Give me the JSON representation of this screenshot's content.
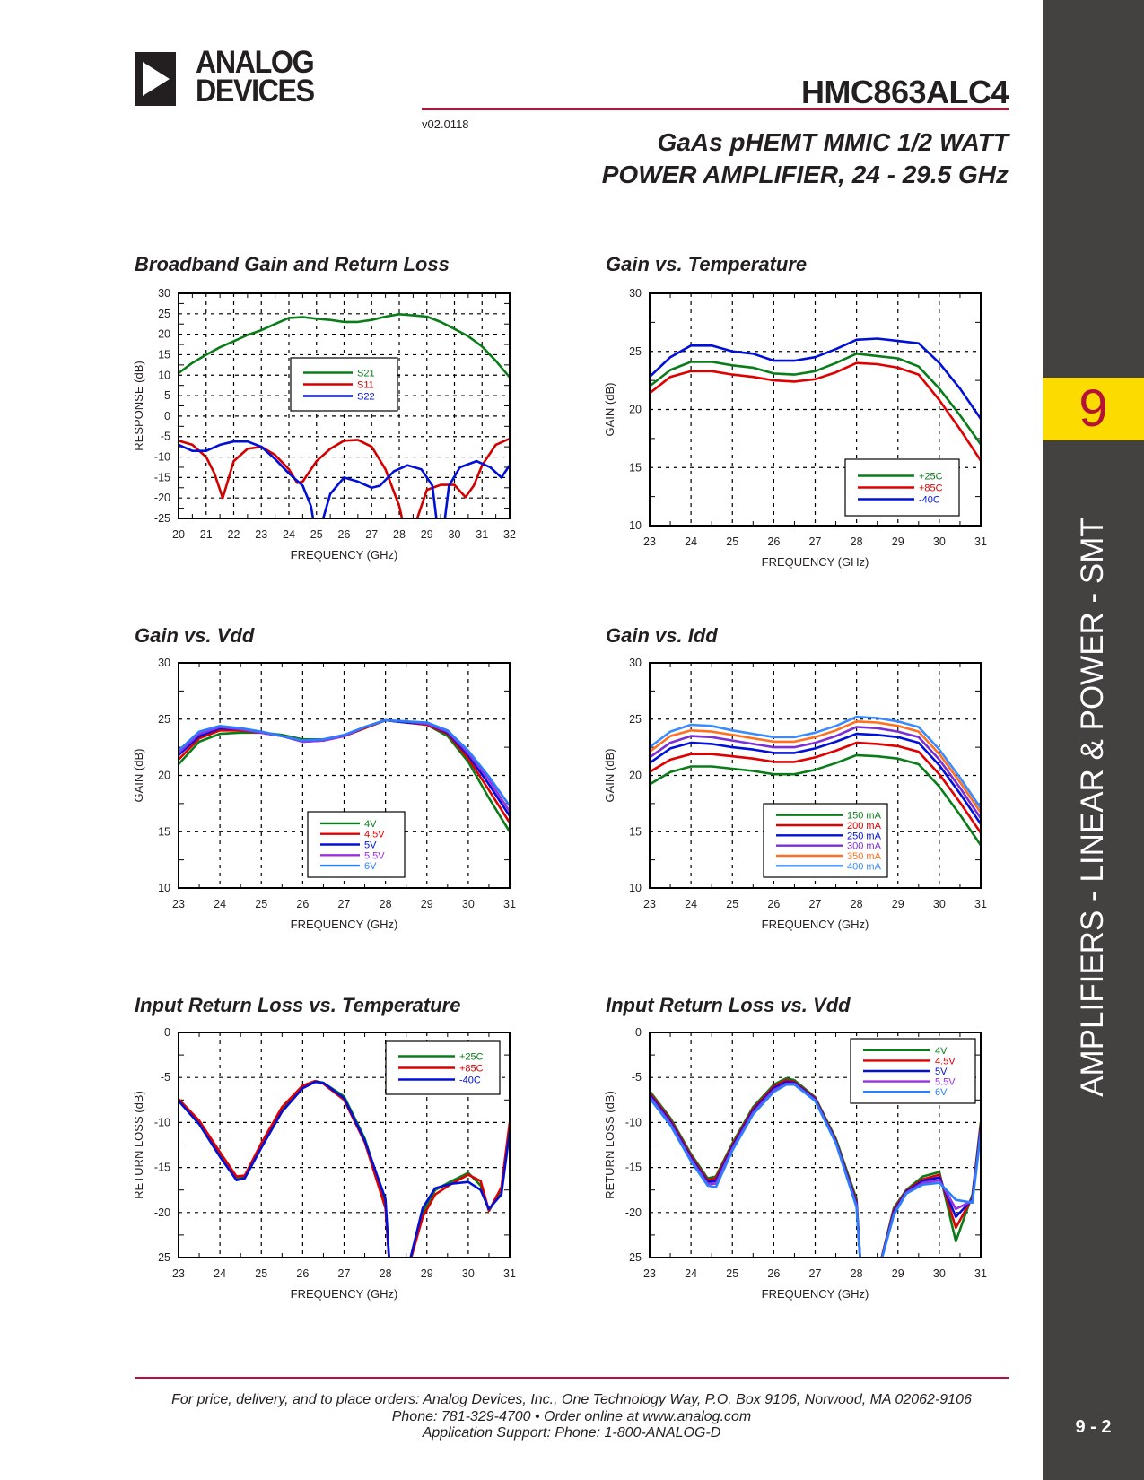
{
  "header": {
    "logo_line1": "ANALOG",
    "logo_line2": "DEVICES",
    "part_number": "HMC863ALC4",
    "version": "v02.0118",
    "subtitle_line1": "GaAs pHEMT MMIC 1/2 WATT",
    "subtitle_line2": "POWER AMPLIFIER, 24 - 29.5 GHz"
  },
  "sidebar": {
    "tab_number": "9",
    "section": "AMPLIFIERS - LINEAR & POWER - SMT",
    "page_number": "9 - 2"
  },
  "footer": {
    "line1": "For price, delivery, and to place orders: Analog Devices, Inc., One Technology Way, P.O. Box 9106, Norwood, MA 02062-9106",
    "line2": "Phone: 781-329-4700 • Order online at www.analog.com",
    "line3": "Application Support: Phone: 1-800-ANALOG-D"
  },
  "chart_data": [
    {
      "type": "line",
      "title": "Broadband Gain and Return Loss",
      "xlabel": "FREQUENCY (GHz)",
      "ylabel": "RESPONSE (dB)",
      "xlim": [
        20,
        32
      ],
      "ylim": [
        -25,
        30
      ],
      "xticks": [
        20,
        21,
        22,
        23,
        24,
        25,
        26,
        27,
        28,
        29,
        30,
        31,
        32
      ],
      "yticks": [
        30,
        25,
        20,
        15,
        10,
        5,
        0,
        -5,
        -10,
        -15,
        -20,
        -25
      ],
      "grid": true,
      "legend": "center",
      "series": [
        {
          "name": "S21",
          "color": "#0a7d1a",
          "x": [
            20,
            20.5,
            21,
            21.5,
            22,
            22.5,
            23,
            23.5,
            24,
            24.5,
            25,
            25.5,
            26,
            26.5,
            27,
            27.5,
            28,
            28.5,
            29,
            29.5,
            30,
            30.5,
            31,
            31.5,
            32
          ],
          "y": [
            10.5,
            13,
            15,
            16.8,
            18.3,
            19.8,
            21,
            22.5,
            24,
            24.2,
            23.8,
            23.5,
            23,
            23,
            23.5,
            24.3,
            24.9,
            24.6,
            24.3,
            23,
            21.3,
            19.5,
            17,
            13.5,
            9.5
          ]
        },
        {
          "name": "S11",
          "color": "#d40000",
          "x": [
            20,
            20.5,
            21,
            21.3,
            21.6,
            22,
            22.5,
            23,
            23.5,
            24,
            24.3,
            24.5,
            25,
            25.5,
            26,
            26.5,
            27,
            27.5,
            28,
            28.2,
            28.5,
            28.8,
            29,
            29.5,
            30,
            30.4,
            30.7,
            31,
            31.5,
            32
          ],
          "y": [
            -6,
            -7,
            -10,
            -14,
            -20,
            -11,
            -8,
            -7.5,
            -9.5,
            -13,
            -16.3,
            -16,
            -11,
            -8,
            -6,
            -5.8,
            -7.5,
            -13,
            -22,
            -28,
            -28,
            -22,
            -18,
            -16.8,
            -16.8,
            -19.8,
            -17,
            -12,
            -7,
            -5.5
          ]
        },
        {
          "name": "S22",
          "color": "#0010d8",
          "x": [
            20,
            20.5,
            21,
            21.5,
            22,
            22.5,
            23,
            23.5,
            24,
            24.5,
            24.8,
            25,
            25.2,
            25.5,
            26,
            26.5,
            27,
            27.3,
            27.8,
            28.3,
            28.8,
            29.2,
            29.4,
            29.6,
            29.8,
            30.2,
            30.8,
            31.3,
            31.7,
            32
          ],
          "y": [
            -7,
            -8.5,
            -8.5,
            -7,
            -6.2,
            -6.2,
            -7.5,
            -10.5,
            -14,
            -17,
            -22,
            -30,
            -26,
            -19,
            -15,
            -16,
            -17.5,
            -17,
            -13.5,
            -12,
            -13,
            -17,
            -28,
            -28,
            -17,
            -12.5,
            -11,
            -12.5,
            -15,
            -12
          ]
        }
      ]
    },
    {
      "type": "line",
      "title": "Gain vs. Temperature",
      "xlabel": "FREQUENCY (GHz)",
      "ylabel": "GAIN (dB)",
      "xlim": [
        23,
        31
      ],
      "ylim": [
        10,
        30
      ],
      "xticks": [
        23,
        24,
        25,
        26,
        27,
        28,
        29,
        30,
        31
      ],
      "yticks": [
        30,
        25,
        20,
        15,
        10
      ],
      "grid": true,
      "legend": "bottom-right",
      "x": [
        23,
        23.5,
        24,
        24.5,
        25,
        25.5,
        26,
        26.5,
        27,
        27.5,
        28,
        28.5,
        29,
        29.5,
        30,
        30.5,
        31
      ],
      "series": [
        {
          "name": "+25C",
          "color": "#0a7d1a",
          "y": [
            22,
            23.4,
            24.1,
            24.1,
            23.8,
            23.6,
            23.1,
            23.0,
            23.3,
            24.0,
            24.8,
            24.6,
            24.4,
            23.7,
            21.8,
            19.5,
            17
          ]
        },
        {
          "name": "+85C",
          "color": "#e00000",
          "y": [
            21.4,
            22.8,
            23.3,
            23.3,
            23.0,
            22.8,
            22.5,
            22.4,
            22.6,
            23.2,
            24.0,
            23.9,
            23.6,
            23.0,
            20.8,
            18.3,
            15.6
          ]
        },
        {
          "name": "-40C",
          "color": "#0010d8",
          "y": [
            22.8,
            24.5,
            25.5,
            25.5,
            25.0,
            24.8,
            24.2,
            24.2,
            24.5,
            25.2,
            26.0,
            26.1,
            25.9,
            25.7,
            24.0,
            21.8,
            19.2
          ]
        }
      ]
    },
    {
      "type": "line",
      "title": "Gain vs. Vdd",
      "xlabel": "FREQUENCY (GHz)",
      "ylabel": "GAIN (dB)",
      "xlim": [
        23,
        31
      ],
      "ylim": [
        10,
        30
      ],
      "xticks": [
        23,
        24,
        25,
        26,
        27,
        28,
        29,
        30,
        31
      ],
      "yticks": [
        30,
        25,
        20,
        15,
        10
      ],
      "grid": true,
      "legend": "bottom-right",
      "x": [
        23,
        23.5,
        24,
        24.5,
        25,
        25.5,
        26,
        26.5,
        27,
        27.5,
        28,
        28.5,
        29,
        29.5,
        30,
        30.5,
        31
      ],
      "series": [
        {
          "name": "4V",
          "color": "#0a7d1a",
          "y": [
            21.0,
            23.0,
            23.7,
            23.8,
            23.8,
            23.6,
            23.2,
            23.2,
            23.5,
            24.2,
            24.9,
            24.7,
            24.5,
            23.5,
            21.2,
            18,
            15
          ]
        },
        {
          "name": "4.5V",
          "color": "#e00000",
          "y": [
            21.4,
            23.3,
            24.0,
            24.0,
            23.8,
            23.5,
            23.1,
            23.1,
            23.5,
            24.2,
            24.9,
            24.7,
            24.5,
            23.7,
            21.5,
            18.7,
            15.8
          ]
        },
        {
          "name": "5V",
          "color": "#0010d8",
          "y": [
            21.8,
            23.5,
            24.2,
            24.1,
            23.8,
            23.5,
            23.0,
            23.1,
            23.5,
            24.3,
            24.9,
            24.7,
            24.6,
            23.8,
            21.8,
            19.2,
            16.4
          ]
        },
        {
          "name": "5.5V",
          "color": "#9b30e0",
          "y": [
            22.0,
            23.7,
            24.3,
            24.1,
            23.8,
            23.5,
            23.0,
            23.1,
            23.5,
            24.3,
            24.9,
            24.8,
            24.6,
            23.9,
            22.0,
            19.6,
            16.8
          ]
        },
        {
          "name": "6V",
          "color": "#2a7fff",
          "y": [
            22.2,
            23.9,
            24.4,
            24.2,
            23.9,
            23.5,
            23.1,
            23.2,
            23.6,
            24.3,
            24.9,
            24.8,
            24.7,
            24.0,
            22.2,
            19.9,
            17.3
          ]
        }
      ]
    },
    {
      "type": "line",
      "title": "Gain vs. Idd",
      "xlabel": "FREQUENCY (GHz)",
      "ylabel": "GAIN (dB)",
      "xlim": [
        23,
        31
      ],
      "ylim": [
        10,
        30
      ],
      "xticks": [
        23,
        24,
        25,
        26,
        27,
        28,
        29,
        30,
        31
      ],
      "yticks": [
        30,
        25,
        20,
        15,
        10
      ],
      "grid": true,
      "legend": "bottom-right",
      "x": [
        23,
        23.5,
        24,
        24.5,
        25,
        25.5,
        26,
        26.5,
        27,
        27.5,
        28,
        28.5,
        29,
        29.5,
        30,
        30.5,
        31
      ],
      "series": [
        {
          "name": "150 mA",
          "color": "#0a7d1a",
          "y": [
            19.2,
            20.3,
            20.8,
            20.8,
            20.6,
            20.4,
            20.1,
            20.1,
            20.5,
            21.1,
            21.8,
            21.7,
            21.5,
            21.0,
            19.0,
            16.5,
            13.8
          ]
        },
        {
          "name": "200 mA",
          "color": "#e00000",
          "y": [
            20.3,
            21.4,
            21.9,
            21.9,
            21.7,
            21.5,
            21.2,
            21.2,
            21.6,
            22.2,
            22.9,
            22.8,
            22.6,
            22.1,
            20.1,
            17.6,
            14.9
          ]
        },
        {
          "name": "250 mA",
          "color": "#0010d8",
          "y": [
            21.1,
            22.4,
            22.9,
            22.8,
            22.5,
            22.3,
            22.0,
            22.0,
            22.4,
            23.0,
            23.7,
            23.6,
            23.4,
            22.9,
            20.9,
            18.4,
            15.7
          ]
        },
        {
          "name": "300 mA",
          "color": "#7b2fd6",
          "y": [
            21.6,
            22.9,
            23.5,
            23.4,
            23.1,
            22.8,
            22.5,
            22.5,
            22.9,
            23.5,
            24.3,
            24.2,
            23.9,
            23.4,
            21.4,
            18.9,
            16.2
          ]
        },
        {
          "name": "350 mA",
          "color": "#ff7020",
          "y": [
            22.1,
            23.5,
            24.0,
            23.9,
            23.6,
            23.3,
            23.0,
            23.0,
            23.4,
            24.0,
            24.8,
            24.7,
            24.4,
            23.9,
            21.9,
            19.4,
            16.7
          ]
        },
        {
          "name": "400 mA",
          "color": "#3a8bff",
          "y": [
            22.5,
            23.9,
            24.5,
            24.4,
            24.0,
            23.7,
            23.4,
            23.4,
            23.8,
            24.4,
            25.2,
            25.1,
            24.8,
            24.3,
            22.3,
            19.8,
            17.1
          ]
        }
      ]
    },
    {
      "type": "line",
      "title": "Input Return Loss vs. Temperature",
      "xlabel": "FREQUENCY (GHz)",
      "ylabel": "RETURN LOSS (dB)",
      "xlim": [
        23,
        31
      ],
      "ylim": [
        -25,
        0
      ],
      "xticks": [
        23,
        24,
        25,
        26,
        27,
        28,
        29,
        30,
        31
      ],
      "yticks": [
        0,
        -5,
        -10,
        -15,
        -20,
        -25
      ],
      "grid": true,
      "legend": "top-right",
      "x": [
        23,
        23.5,
        24,
        24.4,
        24.6,
        25,
        25.5,
        26,
        26.3,
        26.5,
        27,
        27.5,
        28,
        28.1,
        28.5,
        28.9,
        29.2,
        29.6,
        30,
        30.3,
        30.5,
        30.8,
        31
      ],
      "series": [
        {
          "name": "+25C",
          "color": "#0a7d1a",
          "y": [
            -7.5,
            -10,
            -13.5,
            -16.2,
            -16,
            -12.5,
            -8.5,
            -6,
            -5.4,
            -5.6,
            -7.1,
            -11.8,
            -19,
            -26,
            -27,
            -20,
            -17.5,
            -16.5,
            -15.6,
            -17,
            -19.8,
            -17.5,
            -10.5
          ]
        },
        {
          "name": "+85C",
          "color": "#e00000",
          "y": [
            -7.4,
            -9.8,
            -13.3,
            -16,
            -15.9,
            -12.3,
            -8.3,
            -5.9,
            -5.4,
            -5.7,
            -7.5,
            -12.2,
            -19.5,
            -26,
            -27,
            -20.5,
            -18,
            -16.8,
            -15.8,
            -16.5,
            -19.8,
            -17.2,
            -10
          ]
        },
        {
          "name": "-40C",
          "color": "#0010d8",
          "y": [
            -7.6,
            -10.2,
            -13.8,
            -16.4,
            -16.2,
            -12.8,
            -8.8,
            -6.2,
            -5.5,
            -5.6,
            -7.3,
            -12,
            -18.5,
            -26,
            -27,
            -19.5,
            -17.3,
            -16.8,
            -16.6,
            -17.5,
            -19.6,
            -18,
            -11
          ]
        }
      ]
    },
    {
      "type": "line",
      "title": "Input Return Loss vs. Vdd",
      "xlabel": "FREQUENCY (GHz)",
      "ylabel": "RETURN LOSS (dB)",
      "xlim": [
        23,
        31
      ],
      "ylim": [
        -25,
        0
      ],
      "xticks": [
        23,
        24,
        25,
        26,
        27,
        28,
        29,
        30,
        31
      ],
      "yticks": [
        0,
        -5,
        -10,
        -15,
        -20,
        -25
      ],
      "grid": true,
      "legend": "top-right",
      "x": [
        23,
        23.5,
        24,
        24.4,
        24.6,
        25,
        25.5,
        26,
        26.3,
        26.5,
        27,
        27.5,
        28,
        28.1,
        28.5,
        28.9,
        29.2,
        29.6,
        30,
        30.4,
        30.8,
        31
      ],
      "series": [
        {
          "name": "4V",
          "color": "#0a7d1a",
          "y": [
            -6.5,
            -9.5,
            -13.5,
            -16.2,
            -16,
            -12.3,
            -8.3,
            -5.8,
            -5.1,
            -5.3,
            -7.2,
            -11.8,
            -18.5,
            -26,
            -27,
            -19.5,
            -17.5,
            -16,
            -15.5,
            -23.2,
            -18,
            -10
          ]
        },
        {
          "name": "4.5V",
          "color": "#e00000",
          "y": [
            -6.7,
            -9.7,
            -13.7,
            -16.4,
            -16.2,
            -12.5,
            -8.5,
            -6,
            -5.3,
            -5.5,
            -7.3,
            -12,
            -18.8,
            -26,
            -27,
            -19.7,
            -17.6,
            -16.3,
            -15.8,
            -21.7,
            -18.3,
            -10.3
          ]
        },
        {
          "name": "5V",
          "color": "#0010d8",
          "y": [
            -6.9,
            -9.9,
            -13.9,
            -16.6,
            -16.5,
            -12.7,
            -8.7,
            -6.2,
            -5.5,
            -5.6,
            -7.4,
            -12.1,
            -19,
            -26,
            -27,
            -19.9,
            -17.7,
            -16.5,
            -16.1,
            -20.5,
            -18.5,
            -10.6
          ]
        },
        {
          "name": "5.5V",
          "color": "#9b30e0",
          "y": [
            -7.1,
            -10.1,
            -14.1,
            -16.8,
            -16.8,
            -12.9,
            -8.9,
            -6.4,
            -5.7,
            -5.7,
            -7.5,
            -12.2,
            -19.2,
            -26,
            -27,
            -20.1,
            -17.8,
            -16.7,
            -16.4,
            -19.6,
            -18.7,
            -10.9
          ]
        },
        {
          "name": "6V",
          "color": "#2a7fff",
          "y": [
            -7.3,
            -10.3,
            -14.3,
            -17,
            -17.2,
            -13.1,
            -9.1,
            -6.6,
            -5.8,
            -5.8,
            -7.6,
            -12.3,
            -19.4,
            -26,
            -27,
            -20.3,
            -17.9,
            -16.9,
            -16.7,
            -18.6,
            -18.9,
            -11.2
          ]
        }
      ]
    }
  ]
}
